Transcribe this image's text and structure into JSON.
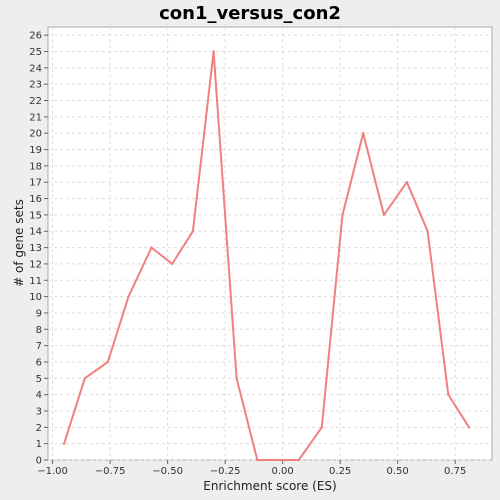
{
  "chart_data": {
    "type": "line",
    "title": "con1_versus_con2",
    "xlabel": "Enrichment score (ES)",
    "ylabel": "# of gene sets",
    "xlim": [
      -1.02,
      0.91
    ],
    "ylim": [
      0,
      26.5
    ],
    "grid": true,
    "x_ticks": [
      -1.0,
      -0.75,
      -0.5,
      -0.25,
      0.0,
      0.25,
      0.5,
      0.75
    ],
    "x_tick_labels": [
      "−1.00",
      "−0.75",
      "−0.50",
      "−0.25",
      "0.00",
      "0.25",
      "0.50",
      "0.75"
    ],
    "y_ticks": [
      0,
      1,
      2,
      3,
      4,
      5,
      6,
      7,
      8,
      9,
      10,
      11,
      12,
      13,
      14,
      15,
      16,
      17,
      18,
      19,
      20,
      21,
      22,
      23,
      24,
      25,
      26
    ],
    "series": [
      {
        "color": "#f08080",
        "x": [
          -0.95,
          -0.86,
          -0.76,
          -0.67,
          -0.57,
          -0.48,
          -0.39,
          -0.3,
          -0.2,
          -0.11,
          -0.02,
          0.07,
          0.17,
          0.26,
          0.35,
          0.44,
          0.54,
          0.63,
          0.72,
          0.81
        ],
        "y": [
          1,
          5,
          6,
          10,
          13,
          12,
          14,
          25,
          5,
          0,
          0,
          0,
          2,
          15,
          20,
          15,
          17,
          14,
          4,
          2
        ]
      }
    ]
  }
}
